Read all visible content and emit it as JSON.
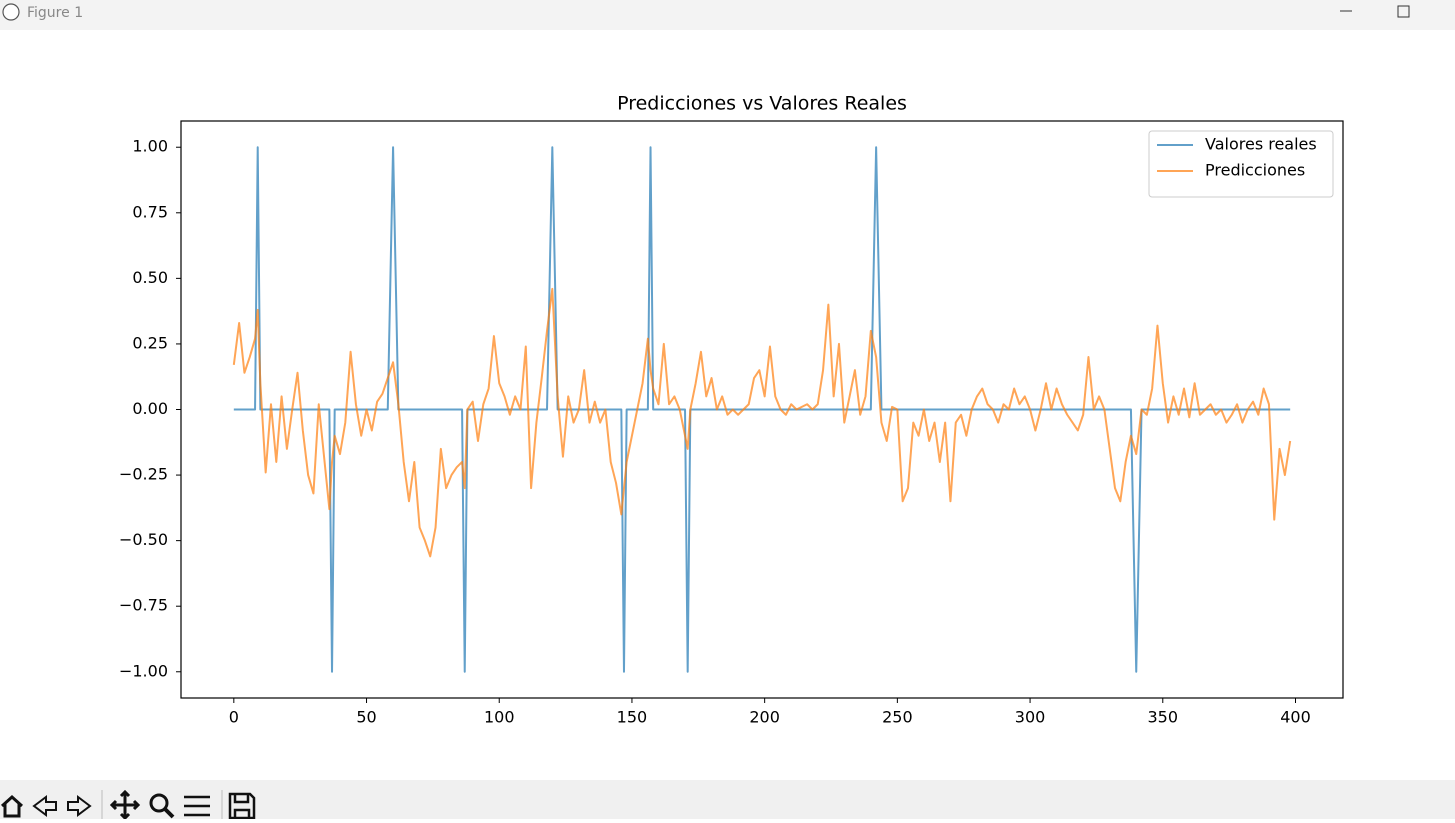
{
  "window": {
    "title": "Figure 1"
  },
  "chart_data": {
    "type": "line",
    "title": "Predicciones vs Valores Reales",
    "x": [
      0,
      2,
      4,
      6,
      8,
      9,
      10,
      12,
      14,
      16,
      18,
      20,
      22,
      24,
      26,
      28,
      30,
      32,
      34,
      36,
      37,
      38,
      40,
      42,
      44,
      46,
      48,
      50,
      52,
      54,
      56,
      58,
      60,
      62,
      64,
      66,
      68,
      70,
      72,
      74,
      76,
      78,
      80,
      82,
      84,
      86,
      87,
      88,
      90,
      92,
      94,
      96,
      98,
      100,
      102,
      104,
      106,
      108,
      110,
      112,
      114,
      116,
      118,
      120,
      122,
      124,
      126,
      128,
      130,
      132,
      134,
      136,
      138,
      140,
      142,
      144,
      146,
      147,
      148,
      150,
      152,
      154,
      156,
      157,
      158,
      160,
      162,
      164,
      166,
      168,
      170,
      171,
      172,
      174,
      176,
      178,
      180,
      182,
      184,
      186,
      188,
      190,
      192,
      194,
      196,
      198,
      200,
      202,
      204,
      206,
      208,
      210,
      212,
      214,
      216,
      218,
      220,
      222,
      224,
      226,
      228,
      230,
      232,
      234,
      236,
      238,
      240,
      242,
      244,
      246,
      248,
      250,
      252,
      254,
      256,
      258,
      260,
      262,
      264,
      266,
      268,
      270,
      272,
      274,
      276,
      278,
      280,
      282,
      284,
      286,
      288,
      290,
      292,
      294,
      296,
      298,
      300,
      302,
      304,
      306,
      308,
      310,
      312,
      314,
      316,
      318,
      320,
      322,
      324,
      326,
      328,
      330,
      332,
      334,
      336,
      338,
      340,
      342,
      344,
      346,
      348,
      350,
      352,
      354,
      356,
      358,
      360,
      362,
      364,
      366,
      368,
      370,
      372,
      374,
      376,
      378,
      380,
      382,
      384,
      386,
      388,
      390,
      392,
      394,
      396,
      398
    ],
    "series": [
      {
        "name": "Valores reales",
        "color": "#1f77b4",
        "values": [
          0,
          0,
          0,
          0,
          0,
          1,
          0,
          0,
          0,
          0,
          0,
          0,
          0,
          0,
          0,
          0,
          0,
          0,
          0,
          0,
          -1,
          0,
          0,
          0,
          0,
          0,
          0,
          0,
          0,
          0,
          0,
          0,
          1,
          0,
          0,
          0,
          0,
          0,
          0,
          0,
          0,
          0,
          0,
          0,
          0,
          0,
          -1,
          0,
          0,
          0,
          0,
          0,
          0,
          0,
          0,
          0,
          0,
          0,
          0,
          0,
          0,
          0,
          0,
          1,
          0,
          0,
          0,
          0,
          0,
          0,
          0,
          0,
          0,
          0,
          0,
          0,
          0,
          -1,
          0,
          0,
          0,
          0,
          0,
          1,
          0,
          0,
          0,
          0,
          0,
          0,
          0,
          -1,
          0,
          0,
          0,
          0,
          0,
          0,
          0,
          0,
          0,
          0,
          0,
          0,
          0,
          0,
          0,
          0,
          0,
          0,
          0,
          0,
          0,
          0,
          0,
          0,
          0,
          0,
          0,
          0,
          0,
          0,
          0,
          0,
          0,
          0,
          0,
          1,
          0,
          0,
          0,
          0,
          0,
          0,
          0,
          0,
          0,
          0,
          0,
          0,
          0,
          0,
          0,
          0,
          0,
          0,
          0,
          0,
          0,
          0,
          0,
          0,
          0,
          0,
          0,
          0,
          0,
          0,
          0,
          0,
          0,
          0,
          0,
          0,
          0,
          0,
          0,
          0,
          0,
          0,
          0,
          0,
          0,
          0,
          0,
          0,
          -1,
          0,
          0,
          0,
          0,
          0,
          0,
          0,
          0,
          0,
          0,
          0,
          0,
          0,
          0,
          0,
          0,
          0,
          0,
          0,
          0,
          0,
          0,
          0,
          0,
          0,
          0,
          0,
          0,
          0
        ]
      },
      {
        "name": "Predicciones",
        "color": "#ff7f0e",
        "values": [
          0.17,
          0.33,
          0.14,
          0.2,
          0.27,
          0.38,
          0.1,
          -0.24,
          0.02,
          -0.2,
          0.05,
          -0.15,
          0,
          0.14,
          -0.08,
          -0.25,
          -0.32,
          0.02,
          -0.18,
          -0.38,
          -0.2,
          -0.1,
          -0.17,
          -0.05,
          0.22,
          0.02,
          -0.1,
          0,
          -0.08,
          0.03,
          0.06,
          0.12,
          0.18,
          0.02,
          -0.2,
          -0.35,
          -0.2,
          -0.45,
          -0.5,
          -0.56,
          -0.45,
          -0.15,
          -0.3,
          -0.25,
          -0.22,
          -0.2,
          -0.3,
          0,
          0.03,
          -0.12,
          0.02,
          0.08,
          0.28,
          0.1,
          0.05,
          -0.02,
          0.05,
          0,
          0.24,
          -0.3,
          -0.05,
          0.12,
          0.3,
          0.46,
          0.05,
          -0.18,
          0.05,
          -0.05,
          0,
          0.15,
          -0.05,
          0.03,
          -0.05,
          0,
          -0.2,
          -0.28,
          -0.4,
          -0.3,
          -0.2,
          -0.1,
          0,
          0.1,
          0.27,
          0.15,
          0.08,
          0.02,
          0.25,
          0.02,
          0.05,
          0,
          -0.1,
          -0.15,
          0,
          0.1,
          0.22,
          0.05,
          0.12,
          0,
          0.05,
          -0.02,
          0,
          -0.02,
          0,
          0.02,
          0.12,
          0.15,
          0.05,
          0.24,
          0.05,
          0,
          -0.02,
          0.02,
          0,
          0.01,
          0.02,
          0,
          0.02,
          0.15,
          0.4,
          0.05,
          0.25,
          -0.05,
          0.05,
          0.15,
          -0.02,
          0.05,
          0.3,
          0.2,
          -0.05,
          -0.12,
          0.01,
          0,
          -0.35,
          -0.3,
          -0.05,
          -0.1,
          0,
          -0.12,
          -0.05,
          -0.2,
          -0.05,
          -0.35,
          -0.05,
          -0.02,
          -0.1,
          0,
          0.05,
          0.08,
          0.02,
          0,
          -0.05,
          0.02,
          0,
          0.08,
          0.02,
          0.05,
          0,
          -0.08,
          0,
          0.1,
          0,
          0.08,
          0.02,
          -0.02,
          -0.05,
          -0.08,
          -0.02,
          0.2,
          0,
          0.05,
          0,
          -0.15,
          -0.3,
          -0.35,
          -0.2,
          -0.1,
          -0.17,
          0,
          -0.02,
          0.08,
          0.32,
          0.1,
          -0.05,
          0.05,
          -0.02,
          0.08,
          -0.03,
          0.1,
          -0.02,
          0,
          0.02,
          -0.02,
          0,
          -0.05,
          -0.02,
          0.02,
          -0.05,
          0,
          0.03,
          -0.02,
          0.08,
          0.02,
          -0.42,
          -0.15,
          -0.25,
          -0.12
        ]
      }
    ],
    "alpha": 0.7,
    "xlim": [
      -19.9,
      417.9
    ],
    "xticks": [
      0,
      50,
      100,
      150,
      200,
      250,
      300,
      350,
      400
    ],
    "ylim": [
      -1.1,
      1.1
    ],
    "yticks": [
      {
        "value": 1,
        "label": "1.00"
      },
      {
        "value": 0.75,
        "label": "0.75"
      },
      {
        "value": 0.5,
        "label": "0.50"
      },
      {
        "value": 0.25,
        "label": "0.25"
      },
      {
        "value": 0,
        "label": "0.00"
      },
      {
        "value": -0.25,
        "label": "−0.25"
      },
      {
        "value": -0.5,
        "label": "−0.50"
      },
      {
        "value": -0.75,
        "label": "−0.75"
      },
      {
        "value": -1,
        "label": "−1.00"
      }
    ],
    "grid": false,
    "legend": "upper right"
  }
}
